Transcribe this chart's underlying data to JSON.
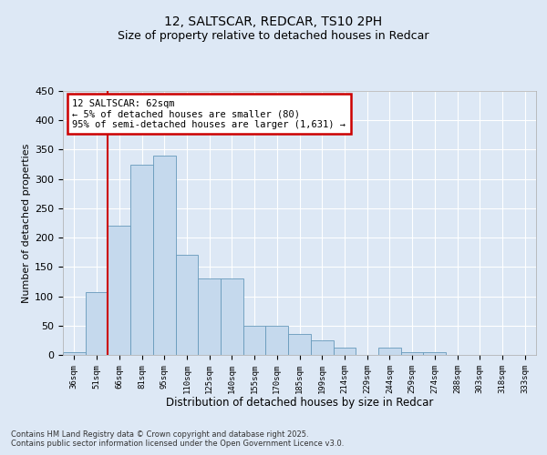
{
  "title": "12, SALTSCAR, REDCAR, TS10 2PH",
  "subtitle": "Size of property relative to detached houses in Redcar",
  "xlabel": "Distribution of detached houses by size in Redcar",
  "ylabel": "Number of detached properties",
  "bar_labels": [
    "36sqm",
    "51sqm",
    "66sqm",
    "81sqm",
    "95sqm",
    "110sqm",
    "125sqm",
    "140sqm",
    "155sqm",
    "170sqm",
    "185sqm",
    "199sqm",
    "214sqm",
    "229sqm",
    "244sqm",
    "259sqm",
    "274sqm",
    "288sqm",
    "303sqm",
    "318sqm",
    "333sqm"
  ],
  "bar_values": [
    5,
    107,
    220,
    325,
    340,
    170,
    130,
    130,
    50,
    50,
    35,
    25,
    13,
    0,
    13,
    5,
    5,
    0,
    0,
    0,
    0
  ],
  "bar_color": "#c5d9ed",
  "bar_edge_color": "#6699bb",
  "vline_x": 1.5,
  "vline_color": "#cc0000",
  "annotation_text": "12 SALTSCAR: 62sqm\n← 5% of detached houses are smaller (80)\n95% of semi-detached houses are larger (1,631) →",
  "annotation_box_color": "#cc0000",
  "ylim": [
    0,
    450
  ],
  "yticks": [
    0,
    50,
    100,
    150,
    200,
    250,
    300,
    350,
    400,
    450
  ],
  "bg_color": "#dde8f5",
  "plot_bg_color": "#dde8f5",
  "footer_line1": "Contains HM Land Registry data © Crown copyright and database right 2025.",
  "footer_line2": "Contains public sector information licensed under the Open Government Licence v3.0.",
  "title_fontsize": 10,
  "subtitle_fontsize": 9,
  "xlabel_fontsize": 8.5,
  "ylabel_fontsize": 8
}
